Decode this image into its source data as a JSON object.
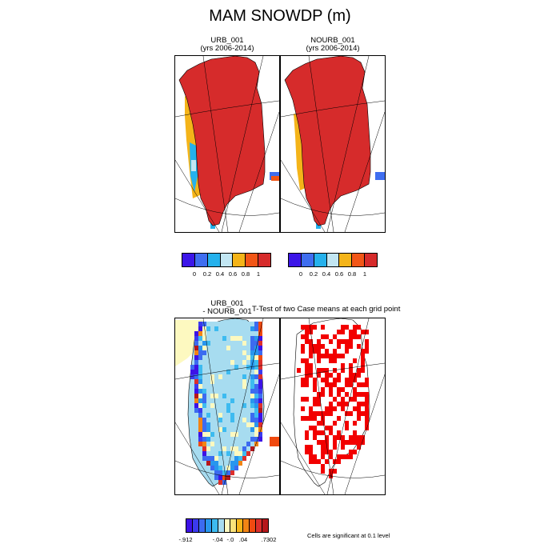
{
  "title": "MAM SNOWDP (m)",
  "panels": {
    "urb": {
      "line1": "URB_001",
      "line2": "(yrs 2006-2014)"
    },
    "nourb": {
      "line1": "NOURB_001",
      "line2": "(yrs 2006-2014)"
    },
    "diff": {
      "line1": "URB_001",
      "line2": "- NOURB_001"
    },
    "ttest": {
      "title": "T-Test of two Case means at each grid point"
    }
  },
  "colorbars": {
    "top": {
      "colors": [
        "#3c16e8",
        "#3f6ef0",
        "#25b1ec",
        "#c2e6f2",
        "#f4b419",
        "#f25617",
        "#d62b2b"
      ],
      "labels": [
        "0",
        "0.2",
        "0.4",
        "0.6",
        "0.8",
        "1"
      ]
    },
    "diff": {
      "colors": [
        "#3d12e6",
        "#3b3aed",
        "#3c6bf0",
        "#2896ee",
        "#3dbbf0",
        "#a7dcf0",
        "#fdf9c0",
        "#fbe27a",
        "#f6b51a",
        "#f28414",
        "#f04a10",
        "#dc2f2c",
        "#b5171b"
      ],
      "labels": [
        "-.912",
        "-.04",
        "-.0",
        ".04",
        ".7302"
      ]
    }
  },
  "significance_note": "Cells are significant at 0.1 level",
  "colors": {
    "land_full": "#d62b2b",
    "significant": "#f20000",
    "outline": "#000000"
  }
}
